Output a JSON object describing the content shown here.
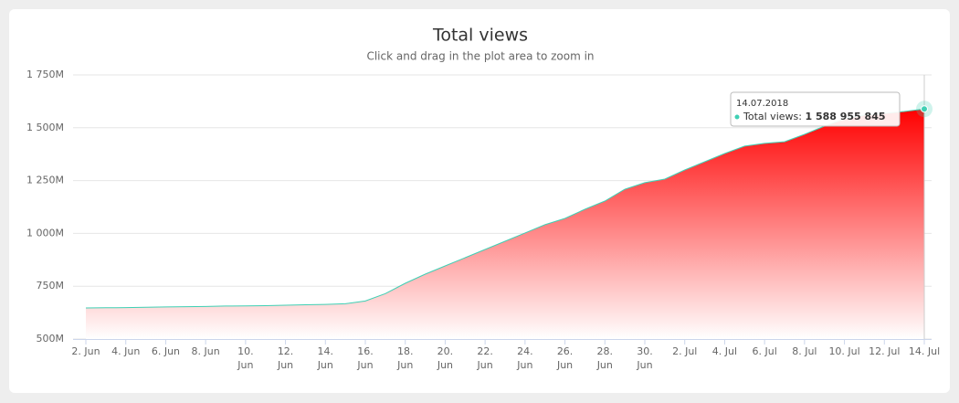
{
  "chart_data": {
    "type": "area",
    "title": "Total views",
    "subtitle": "Click and drag in the plot area to zoom in",
    "x": [
      "2018-06-02",
      "2018-06-03",
      "2018-06-04",
      "2018-06-05",
      "2018-06-06",
      "2018-06-07",
      "2018-06-08",
      "2018-06-09",
      "2018-06-10",
      "2018-06-11",
      "2018-06-12",
      "2018-06-13",
      "2018-06-14",
      "2018-06-15",
      "2018-06-16",
      "2018-06-17",
      "2018-06-18",
      "2018-06-19",
      "2018-06-20",
      "2018-06-21",
      "2018-06-22",
      "2018-06-23",
      "2018-06-24",
      "2018-06-25",
      "2018-06-26",
      "2018-06-27",
      "2018-06-28",
      "2018-06-29",
      "2018-06-30",
      "2018-07-01",
      "2018-07-02",
      "2018-07-03",
      "2018-07-04",
      "2018-07-05",
      "2018-07-06",
      "2018-07-07",
      "2018-07-08",
      "2018-07-09",
      "2018-07-10",
      "2018-07-11",
      "2018-07-12",
      "2018-07-13",
      "2018-07-14"
    ],
    "series": [
      {
        "name": "Total views",
        "color": "#ff0000",
        "line_color": "#3fd0b4",
        "values": [
          647000000,
          648000000,
          649000000,
          650000000,
          652000000,
          653000000,
          654000000,
          656000000,
          657000000,
          658000000,
          660000000,
          662000000,
          664000000,
          667000000,
          680000000,
          715000000,
          764000000,
          807000000,
          846000000,
          885000000,
          924000000,
          963000000,
          1002000000,
          1041000000,
          1071000000,
          1114000000,
          1153000000,
          1209000000,
          1240000000,
          1257000000,
          1300000000,
          1339000000,
          1378000000,
          1413000000,
          1426000000,
          1434000000,
          1469000000,
          1508000000,
          1542000000,
          1560000000,
          1568000000,
          1577000000,
          1588955845
        ]
      }
    ],
    "xlim": [
      "2018-06-02",
      "2018-07-14"
    ],
    "xticks": [
      {
        "value": "2018-06-02",
        "label": "2. Jun"
      },
      {
        "value": "2018-06-04",
        "label": "4. Jun"
      },
      {
        "value": "2018-06-06",
        "label": "6. Jun"
      },
      {
        "value": "2018-06-08",
        "label": "8. Jun"
      },
      {
        "value": "2018-06-10",
        "label": "10. Jun"
      },
      {
        "value": "2018-06-12",
        "label": "12. Jun"
      },
      {
        "value": "2018-06-14",
        "label": "14. Jun"
      },
      {
        "value": "2018-06-16",
        "label": "16. Jun"
      },
      {
        "value": "2018-06-18",
        "label": "18. Jun"
      },
      {
        "value": "2018-06-20",
        "label": "20. Jun"
      },
      {
        "value": "2018-06-22",
        "label": "22. Jun"
      },
      {
        "value": "2018-06-24",
        "label": "24. Jun"
      },
      {
        "value": "2018-06-26",
        "label": "26. Jun"
      },
      {
        "value": "2018-06-28",
        "label": "28. Jun"
      },
      {
        "value": "2018-06-30",
        "label": "30. Jun"
      },
      {
        "value": "2018-07-02",
        "label": "2. Jul"
      },
      {
        "value": "2018-07-04",
        "label": "4. Jul"
      },
      {
        "value": "2018-07-06",
        "label": "6. Jul"
      },
      {
        "value": "2018-07-08",
        "label": "8. Jul"
      },
      {
        "value": "2018-07-10",
        "label": "10. Jul"
      },
      {
        "value": "2018-07-12",
        "label": "12. Jul"
      },
      {
        "value": "2018-07-14",
        "label": "14. Jul"
      }
    ],
    "ylim": [
      500000000,
      1750000000
    ],
    "yticks": [
      {
        "value": 500000000,
        "label": "500M"
      },
      {
        "value": 750000000,
        "label": "750M"
      },
      {
        "value": 1000000000,
        "label": "1 000M"
      },
      {
        "value": 1250000000,
        "label": "1 250M"
      },
      {
        "value": 1500000000,
        "label": "1 500M"
      },
      {
        "value": 1750000000,
        "label": "1 750M"
      }
    ],
    "grid": true,
    "tooltip": {
      "date": "14.07.2018",
      "label": "Total views:",
      "value_label": "1 588 955 845"
    }
  }
}
